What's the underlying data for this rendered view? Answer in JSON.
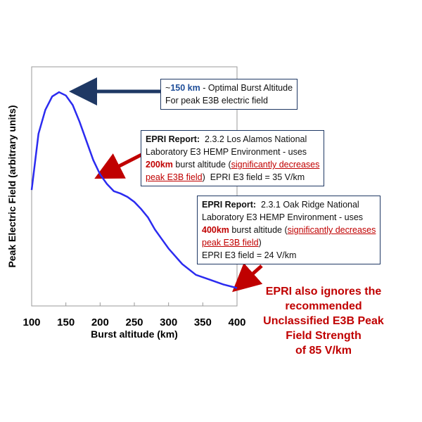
{
  "chart_data": {
    "type": "line",
    "x_label": "Burst altitude (km)",
    "y_label": "Peak Electric Field (arbitrary units)",
    "x": [
      100,
      110,
      120,
      130,
      140,
      150,
      160,
      170,
      180,
      190,
      200,
      210,
      220,
      230,
      240,
      250,
      260,
      270,
      280,
      290,
      300,
      320,
      340,
      360,
      380,
      400
    ],
    "series": [
      {
        "color": "#2b2bf0",
        "values": [
          0.485,
          0.72,
          0.82,
          0.876,
          0.894,
          0.88,
          0.84,
          0.77,
          0.69,
          0.61,
          0.55,
          0.51,
          0.48,
          0.47,
          0.456,
          0.435,
          0.405,
          0.37,
          0.32,
          0.28,
          0.24,
          0.175,
          0.13,
          0.11,
          0.09,
          0.075
        ]
      }
    ],
    "xlim": [
      100,
      400
    ],
    "xticks": [
      100,
      150,
      200,
      250,
      300,
      350,
      400
    ],
    "ylim": [
      0,
      1
    ],
    "annotations": [
      {
        "lines": [
          [
            {
              "text": "~"
            },
            {
              "text": "150 km",
              "bold": true,
              "color": "#1f4e99"
            },
            {
              "text": " - Optimal Burst Altitude"
            }
          ],
          [
            {
              "text": "For peak E3B electric field"
            }
          ]
        ]
      },
      {
        "lines": [
          [
            {
              "text": "EPRI Report:",
              "bold": true
            },
            {
              "text": "  2.3.2 Los Alamos National"
            }
          ],
          [
            {
              "text": "Laboratory E3 HEMP Environment - uses"
            }
          ],
          [
            {
              "text": "200km",
              "bold": true,
              "color": "#c00000"
            },
            {
              "text": " burst altitude ("
            },
            {
              "text": "significantly decreases",
              "color": "#c00000",
              "underline": true
            }
          ],
          [
            {
              "text": "peak E3B field",
              "color": "#c00000",
              "underline": true
            },
            {
              "text": ")  EPRI E3 field = 35 V/km"
            }
          ]
        ]
      },
      {
        "lines": [
          [
            {
              "text": "EPRI Report:",
              "bold": true
            },
            {
              "text": "  2.3.1 Oak Ridge National"
            }
          ],
          [
            {
              "text": "Laboratory E3 HEMP Environment - uses"
            }
          ],
          [
            {
              "text": "400km",
              "bold": true,
              "color": "#c00000"
            },
            {
              "text": " burst altitude ("
            },
            {
              "text": "significantly decreases",
              "color": "#c00000",
              "underline": true
            }
          ],
          [
            {
              "text": "peak E3B field",
              "color": "#c00000",
              "underline": true
            },
            {
              "text": ")"
            }
          ],
          [
            {
              "text": "EPRI E3 field = 24 V/km"
            }
          ]
        ]
      }
    ],
    "note_lines": [
      "EPRI also ignores the",
      "recommended",
      "Unclassified E3B Peak",
      "Field Strength",
      "of 85 V/km"
    ]
  }
}
